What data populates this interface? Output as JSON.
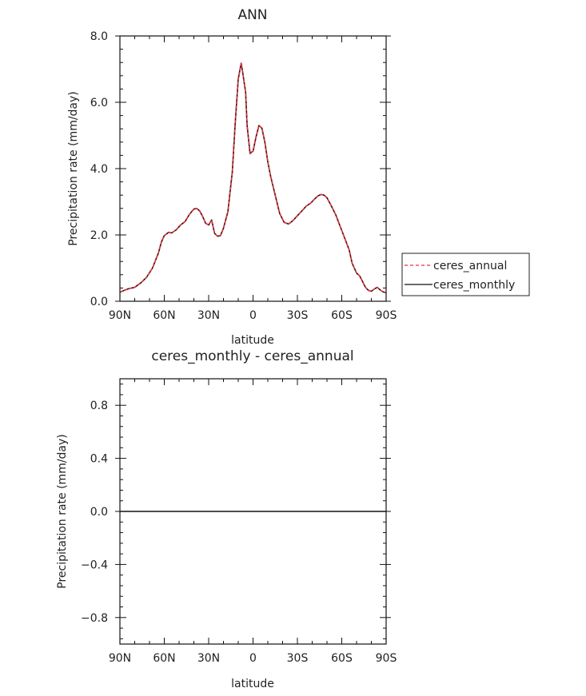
{
  "chart_data": [
    {
      "type": "line",
      "title": "ANN",
      "xlabel": "latitude",
      "ylabel": "Precipitation rate (mm/day)",
      "xlim": [
        90,
        -90
      ],
      "ylim": [
        0,
        8
      ],
      "xticks": [
        {
          "v": 90,
          "label": "90N"
        },
        {
          "v": 60,
          "label": "60N"
        },
        {
          "v": 30,
          "label": "30N"
        },
        {
          "v": 0,
          "label": "0"
        },
        {
          "v": -30,
          "label": "30S"
        },
        {
          "v": -60,
          "label": "60S"
        },
        {
          "v": -90,
          "label": "90S"
        }
      ],
      "yticks": [
        {
          "v": 0,
          "label": "0.0"
        },
        {
          "v": 2,
          "label": "2.0"
        },
        {
          "v": 4,
          "label": "4.0"
        },
        {
          "v": 6,
          "label": "6.0"
        },
        {
          "v": 8,
          "label": "8.0"
        }
      ],
      "legend_position": "right",
      "series": [
        {
          "name": "ceres_annual",
          "color": "#e8323c",
          "dash": "dashed",
          "x": [
            90,
            87,
            84,
            80,
            76,
            72,
            68,
            64,
            62,
            60,
            57,
            55,
            52,
            49,
            46,
            43,
            40,
            38,
            36,
            34,
            32,
            30,
            28,
            26,
            24,
            22,
            20,
            17,
            14,
            12,
            10,
            8,
            7,
            5,
            4,
            2,
            1,
            0,
            -2,
            -4,
            -6,
            -8,
            -10,
            -12,
            -15,
            -18,
            -21,
            -24,
            -27,
            -30,
            -33,
            -36,
            -39,
            -42,
            -44,
            -46,
            -48,
            -50,
            -53,
            -56,
            -59,
            -62,
            -65,
            -67,
            -70,
            -72,
            -74,
            -76,
            -78,
            -80,
            -82,
            -84,
            -86,
            -88,
            -90
          ],
          "y": [
            0.27,
            0.33,
            0.38,
            0.42,
            0.55,
            0.72,
            1.0,
            1.45,
            1.78,
            1.98,
            2.08,
            2.06,
            2.15,
            2.3,
            2.4,
            2.62,
            2.78,
            2.8,
            2.72,
            2.55,
            2.35,
            2.3,
            2.45,
            2.05,
            1.96,
            1.98,
            2.2,
            2.7,
            3.9,
            5.4,
            6.7,
            7.18,
            6.9,
            6.3,
            5.3,
            4.45,
            4.5,
            4.52,
            4.95,
            5.3,
            5.22,
            4.8,
            4.2,
            3.75,
            3.2,
            2.65,
            2.38,
            2.33,
            2.43,
            2.58,
            2.72,
            2.87,
            2.96,
            3.1,
            3.18,
            3.22,
            3.2,
            3.12,
            2.87,
            2.6,
            2.25,
            1.9,
            1.55,
            1.15,
            0.85,
            0.77,
            0.6,
            0.42,
            0.33,
            0.3,
            0.37,
            0.42,
            0.34,
            0.28,
            0.26
          ]
        },
        {
          "name": "ceres_monthly",
          "color": "#111111",
          "dash": "solid",
          "same_as": "ceres_annual"
        }
      ]
    },
    {
      "type": "line",
      "title": "ceres_monthly - ceres_annual",
      "xlabel": "latitude",
      "ylabel": "Precipitation rate (mm/day)",
      "xlim": [
        90,
        -90
      ],
      "ylim": [
        -1,
        1
      ],
      "xticks": [
        {
          "v": 90,
          "label": "90N"
        },
        {
          "v": 60,
          "label": "60N"
        },
        {
          "v": 30,
          "label": "30N"
        },
        {
          "v": 0,
          "label": "0"
        },
        {
          "v": -30,
          "label": "30S"
        },
        {
          "v": -60,
          "label": "60S"
        },
        {
          "v": -90,
          "label": "90S"
        }
      ],
      "yticks": [
        {
          "v": 0.8,
          "label": "0.8"
        },
        {
          "v": 0.4,
          "label": "0.4"
        },
        {
          "v": 0.0,
          "label": "0.0"
        },
        {
          "v": -0.4,
          "label": "−0.4"
        },
        {
          "v": -0.8,
          "label": "−0.8"
        }
      ],
      "series": [
        {
          "name": "",
          "color": "#111111",
          "dash": "solid",
          "x": [
            90,
            -90
          ],
          "y": [
            0,
            0
          ]
        }
      ]
    }
  ]
}
